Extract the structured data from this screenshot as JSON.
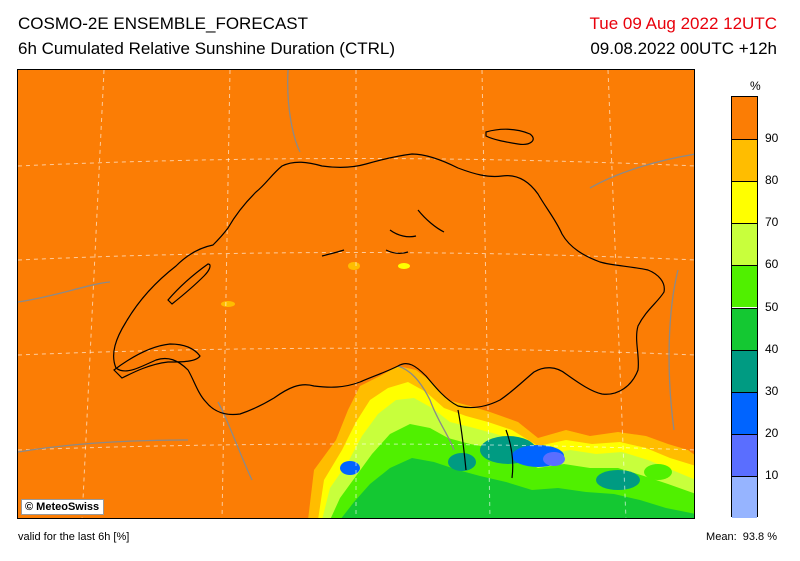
{
  "header": {
    "title_line1": "COSMO-2E ENSEMBLE_FORECAST",
    "title_line2": "6h Cumulated Relative Sunshine Duration (CTRL)",
    "valid_datetime": "Tue 09 Aug 2022 12UTC",
    "run_info": "09.08.2022 00UTC +12h"
  },
  "map": {
    "copyright": "© MeteoSwiss",
    "background_color": "#fb7d05"
  },
  "legend": {
    "unit": "%",
    "ticks": [
      "90",
      "80",
      "70",
      "60",
      "50",
      "40",
      "30",
      "20",
      "10"
    ],
    "colors": [
      "#fb7d05",
      "#ffbd00",
      "#ffff00",
      "#c8ff3c",
      "#50f000",
      "#14c832",
      "#009b82",
      "#0064ff",
      "#5a6eff",
      "#96b4ff"
    ]
  },
  "footer": {
    "valid_note": "valid for the last 6h [%]",
    "mean_label": "Mean:",
    "mean_value": "93.8 %"
  }
}
